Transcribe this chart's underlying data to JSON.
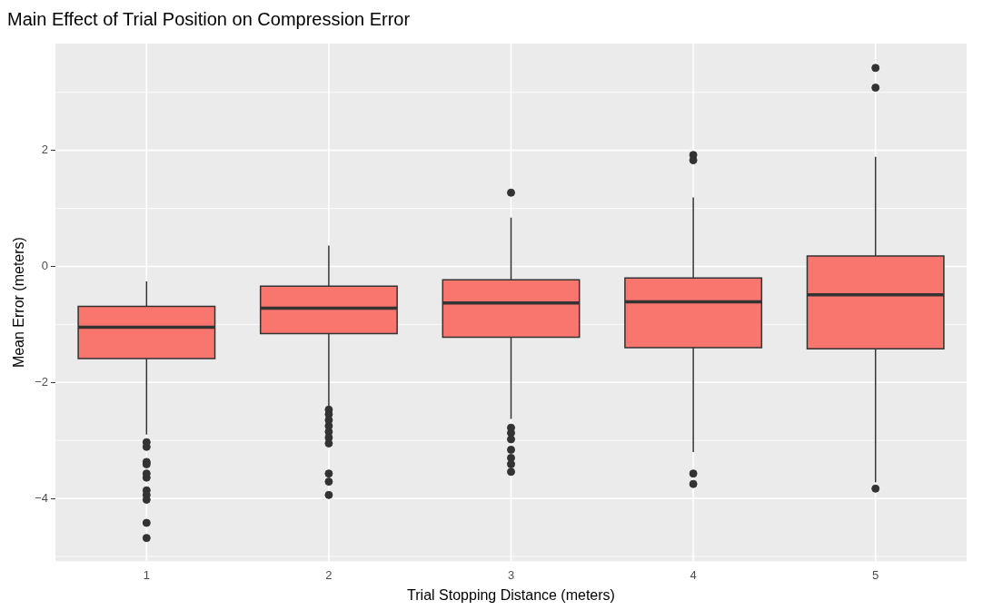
{
  "chart_data": {
    "type": "box",
    "title": "Main Effect of Trial Position on Compression Error",
    "xlabel": "Trial Stopping Distance (meters)",
    "ylabel": "Mean Error (meters)",
    "categories": [
      "1",
      "2",
      "3",
      "4",
      "5"
    ],
    "color": "#f8766d",
    "ylim": [
      -5.08,
      3.84
    ],
    "yticks": [
      -4,
      -2,
      0,
      2
    ],
    "grid": true,
    "legend": false,
    "boxes": [
      {
        "low": -2.9,
        "q1": -1.59,
        "median": -1.05,
        "q3": -0.69,
        "high": -0.26,
        "outliers": [
          -3.03,
          -3.11,
          -3.37,
          -3.41,
          -3.57,
          -3.64,
          -3.86,
          -3.94,
          -4.02,
          -4.42,
          -4.68
        ]
      },
      {
        "low": -2.41,
        "q1": -1.16,
        "median": -0.72,
        "q3": -0.34,
        "high": 0.36,
        "outliers": [
          -2.47,
          -2.55,
          -2.65,
          -2.75,
          -2.85,
          -2.95,
          -3.05,
          -3.57,
          -3.71,
          -3.94
        ]
      },
      {
        "low": -2.63,
        "q1": -1.22,
        "median": -0.63,
        "q3": -0.23,
        "high": 0.84,
        "outliers": [
          1.27,
          -2.78,
          -2.87,
          -2.98,
          -3.16,
          -3.3,
          -3.41,
          -3.54
        ]
      },
      {
        "low": -3.2,
        "q1": -1.4,
        "median": -0.61,
        "q3": -0.2,
        "high": 1.19,
        "outliers": [
          1.92,
          1.83,
          -3.57,
          -3.75
        ]
      },
      {
        "low": -3.72,
        "q1": -1.42,
        "median": -0.49,
        "q3": 0.18,
        "high": 1.89,
        "outliers": [
          3.42,
          3.08,
          -3.83
        ]
      }
    ]
  }
}
